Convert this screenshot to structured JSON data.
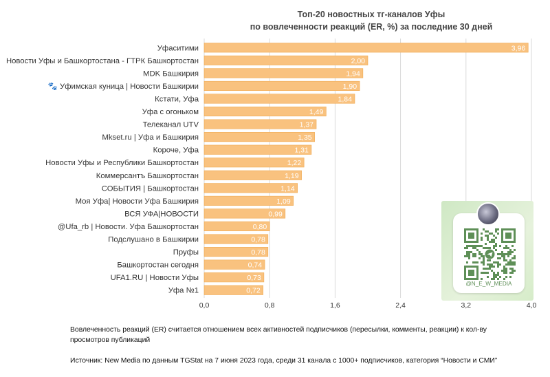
{
  "chart_data": {
    "type": "bar",
    "orientation": "horizontal",
    "title": "Топ-20 новостных тг-каналов Уфы",
    "subtitle": "по вовлеченности реакций (ER, %) за последние 30 дней",
    "categories": [
      "Уфаситими",
      "Новости Уфы и Башкортостана - ГТРК Башкортостан",
      "MDK Башкирия",
      "🐾 Уфимская куница | Новости Башкирии",
      "Кстати, Уфа",
      "Уфа с огоньком",
      "Телеканал UTV",
      "Mkset.ru | Уфа и Башкирия",
      "Короче, Уфа",
      "Новости Уфы и Республики Башкортостан",
      "Коммерсантъ Башкортостан",
      "СОБЫТИЯ | Башкортостан",
      "Моя Уфа| Новости Уфа Башкирия",
      "ВСЯ УФА|НОВОСТИ",
      "@Ufa_rb | Новости. Уфа Башкортостан",
      "Подслушано в Башкирии",
      "Пруфы",
      "Башкортостан сегодня",
      "UFA1.RU | Новости Уфы",
      "Уфа №1"
    ],
    "values": [
      3.96,
      2.0,
      1.94,
      1.9,
      1.84,
      1.49,
      1.37,
      1.35,
      1.31,
      1.22,
      1.19,
      1.14,
      1.09,
      0.99,
      0.8,
      0.78,
      0.78,
      0.74,
      0.73,
      0.72
    ],
    "value_labels": [
      "3,96",
      "2,00",
      "1,94",
      "1,90",
      "1,84",
      "1,49",
      "1,37",
      "1,35",
      "1,31",
      "1,22",
      "1,19",
      "1,14",
      "1,09",
      "0,99",
      "0,80",
      "0,78",
      "0,78",
      "0,74",
      "0,73",
      "0,72"
    ],
    "xlim": [
      0,
      4.0
    ],
    "xticks": [
      "0,0",
      "0,8",
      "1,6",
      "2,4",
      "3,2",
      "4,0"
    ],
    "grid": true,
    "bar_color": "#f9c27f",
    "bar_edge_color": "#f0a94f",
    "grid_color": "#d9d9d9"
  },
  "footnote": "Вовлеченность реакций (ER) считается отношением всех активностей подписчиков (пересылки, комменты, реакции) к кол-ву просмотров публикаций",
  "source": "Источник: New Media по данным TGStat на 7 июня 2023 года, среди 31 канала с 1000+ подписчиков, категория “Новости и СМИ”",
  "qr": {
    "handle": "@N_E_W_MEDIA",
    "accent": "#5e8f57"
  }
}
